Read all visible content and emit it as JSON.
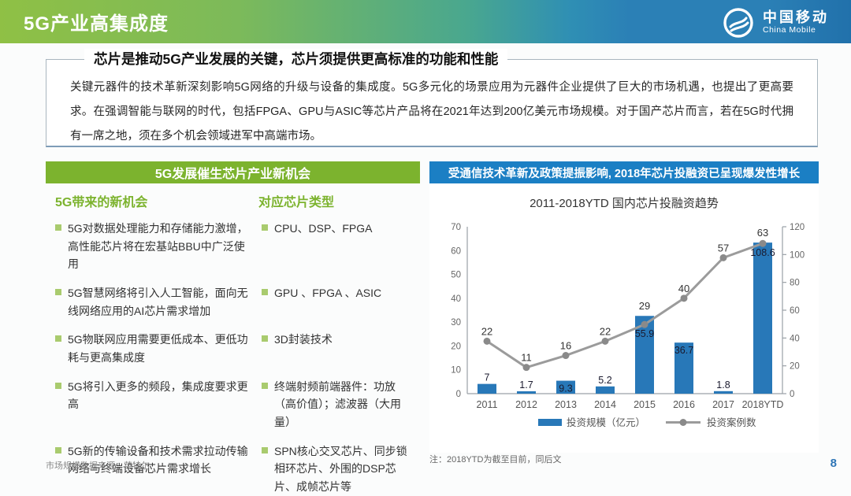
{
  "header": {
    "title": "5G产业高集成度",
    "logo": {
      "cn": "中国移动",
      "en": "China Mobile"
    }
  },
  "intro": {
    "title": "芯片是推动5G产业发展的关键，芯片须提供更高标准的功能和性能",
    "body": "关键元器件的技术革新深刻影响5G网络的升级与设备的集成度。5G多元化的场景应用为元器件企业提供了巨大的市场机遇，也提出了更高要求。在强调智能与联网的时代，包括FPGA、GPU与ASIC等芯片产品将在2021年达到200亿美元市场规模。对于国产芯片而言，若在5G时代拥有一席之地，须在多个机会领域进军中高端市场。"
  },
  "left_panel": {
    "header": "5G发展催生芯片产业新机会",
    "col1_header": "5G带来的新机会",
    "col2_header": "对应芯片类型",
    "rows": [
      {
        "opportunity": "5G对数据处理能力和存储能力激增，高性能芯片将在宏基站BBU中广泛使用",
        "chips": "CPU、DSP、FPGA"
      },
      {
        "opportunity": "5G智慧网络将引入人工智能，面向无线网络应用的AI芯片需求增加",
        "chips": "GPU 、FPGA 、ASIC"
      },
      {
        "opportunity": "5G物联网应用需要更低成本、更低功耗与更高集成度",
        "chips": "3D封装技术"
      },
      {
        "opportunity": "5G将引入更多的频段，集成度要求更高",
        "chips": "终端射频前端器件：功放（高价值）；滤波器（大用量）"
      },
      {
        "opportunity": "5G新的传输设备和技术需求拉动传输网络与终端设备芯片需求增长",
        "chips": "SPN核心交叉芯片、同步锁相环芯片、外围的DSP芯片、成帧芯片等"
      }
    ]
  },
  "right_panel": {
    "header": "受通信技术革新及政策提振影响, 2018年芯片投融资已呈现爆发性增长",
    "note": "注：2018YTD为截至目前，同后文"
  },
  "chart_data": {
    "type": "bar",
    "subtype": "bar-line-combo",
    "title": "2011-2018YTD 国内芯片投融资趋势",
    "categories": [
      "2011",
      "2012",
      "2013",
      "2014",
      "2015",
      "2016",
      "2017",
      "2018YTD"
    ],
    "series": [
      {
        "name": "投资规模（亿元）",
        "type": "bar",
        "axis": "right",
        "color": "#2878b8",
        "values": [
          7,
          1.7,
          9.3,
          5.2,
          55.9,
          36.7,
          1.8,
          108.6
        ]
      },
      {
        "name": "投资案例数",
        "type": "line",
        "axis": "left",
        "color": "#9b9b9b",
        "values": [
          22,
          11,
          16,
          22,
          29,
          40,
          57,
          63
        ]
      }
    ],
    "left_axis": {
      "min": 0,
      "max": 70,
      "step": 10
    },
    "right_axis": {
      "min": 0,
      "max": 120,
      "step": 20
    },
    "grid": false,
    "legend_position": "bottom"
  },
  "footer": {
    "source": "市场规模数据来源：英特尔",
    "page": "8"
  },
  "colors": {
    "green": "#7cb32e",
    "blue": "#1b7fc4",
    "bar": "#2878b8",
    "line": "#9b9b9b",
    "page_num": "#2e75b6"
  }
}
